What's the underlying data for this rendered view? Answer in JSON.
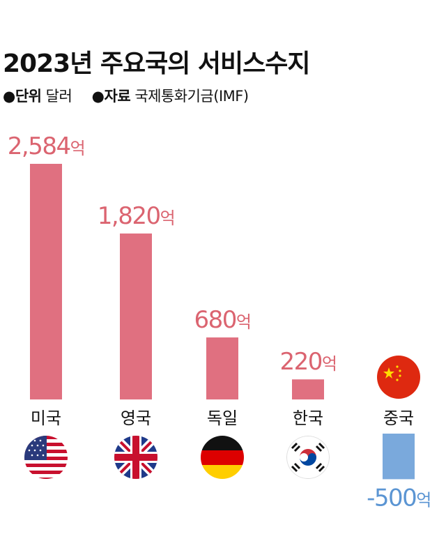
{
  "header": {
    "title": "2023년 주요국의 서비스수지",
    "unit_key": "●단위",
    "unit_value": "달러",
    "source_key": "●자료",
    "source_value": "국제통화기금(IMF)"
  },
  "colors": {
    "positive": "#e07080",
    "positive_label": "#db6470",
    "negative": "#7aa9dc",
    "negative_label": "#5b95d3"
  },
  "chart_data": {
    "type": "bar",
    "categories": [
      "미국",
      "영국",
      "독일",
      "한국",
      "중국"
    ],
    "values": [
      2584,
      1820,
      680,
      220,
      -500
    ],
    "value_labels": [
      "2,584",
      "1,820",
      "680",
      "220",
      "-500"
    ],
    "value_suffix": "억",
    "flags": [
      "us-flag",
      "uk-flag",
      "germany-flag",
      "korea-flag",
      "china-flag"
    ],
    "title": "2023년 주요국의 서비스수지"
  }
}
